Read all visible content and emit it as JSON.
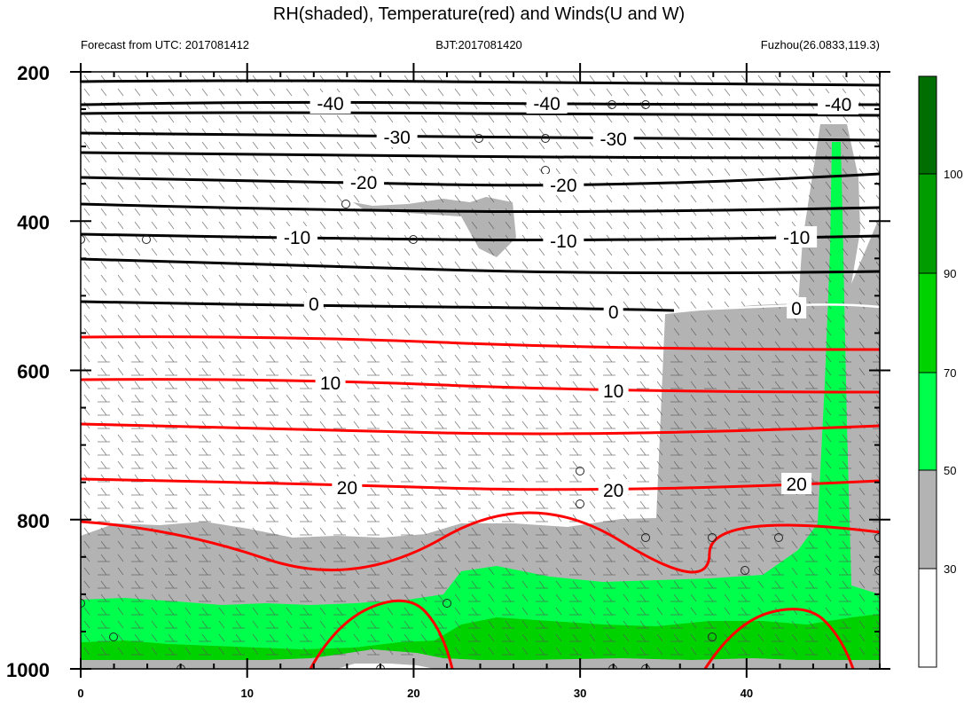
{
  "title": "RH(shaded), Temperature(red) and Winds(U and W)",
  "subtitle_left": "Forecast from UTC: 2017081412",
  "subtitle_center": "BJT:2017081420",
  "subtitle_right": "Fuzhou(26.0833,119.3)",
  "colors": {
    "rh_lt30": "#ffffff",
    "rh_30_50": "#b3b3b3",
    "rh_50_70": "#00ff4c",
    "rh_70_90": "#00d200",
    "rh_90_100": "#009c00",
    "rh_gt100": "#006e00",
    "temperature_contour": "#ff0000",
    "cold_contour": "#000000",
    "zero_contour_warm_segment": "#ffffff"
  },
  "chart_data": {
    "type": "heatmap",
    "xlim": [
      0,
      48
    ],
    "ylim": [
      1000,
      200
    ],
    "x_ticks": [
      0,
      10,
      20,
      30,
      40
    ],
    "y_ticks": [
      200,
      400,
      600,
      800,
      1000
    ],
    "colorbar": {
      "labels": [
        "30",
        "50",
        "70",
        "90",
        "100"
      ]
    },
    "temperature_contours": [
      {
        "level": -40,
        "label": "-40",
        "label_x": [
          7.5,
          14,
          45.5
        ]
      },
      {
        "level": -30,
        "label": "-30",
        "label_x": [
          9.5,
          16
        ]
      },
      {
        "level": -20,
        "label": "-20",
        "label_x": [
          8.5,
          14.5
        ]
      },
      {
        "level": -10,
        "label": "-10",
        "label_x": [
          6.5,
          14.5,
          21.5
        ]
      },
      {
        "level": 0,
        "label": "0",
        "label_x": [
          7,
          16,
          21.5
        ]
      },
      {
        "level": 10,
        "label": "10",
        "label_x": [
          7.5,
          16
        ]
      },
      {
        "level": 20,
        "label": "20",
        "label_x": [
          8,
          16,
          21.5
        ]
      }
    ]
  }
}
